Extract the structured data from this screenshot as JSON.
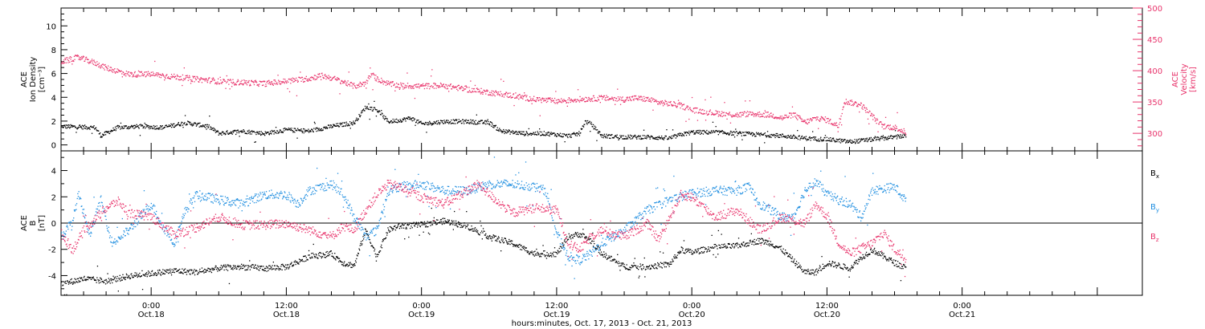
{
  "chart_data": {
    "type": "scatter",
    "x_axis": {
      "label": "hours:minutes, Oct. 17, 2013 - Oct. 21, 2013",
      "range_hours": [
        -8,
        88
      ],
      "ticks": [
        {
          "hours": 0,
          "time": "0:00",
          "date": "Oct.18"
        },
        {
          "hours": 12,
          "time": "12:00",
          "date": "Oct.18"
        },
        {
          "hours": 24,
          "time": "0:00",
          "date": "Oct.19"
        },
        {
          "hours": 36,
          "time": "12:00",
          "date": "Oct.19"
        },
        {
          "hours": 48,
          "time": "0:00",
          "date": "Oct.20"
        },
        {
          "hours": 60,
          "time": "12:00",
          "date": "Oct.20"
        },
        {
          "hours": 72,
          "time": "0:00",
          "date": "Oct.21"
        }
      ]
    },
    "top_panel": {
      "left_axis": {
        "label_lines": [
          "ACE",
          "Ion Density",
          "[cm⁻³]"
        ],
        "range": [
          -0.5,
          11.5
        ],
        "ticks": [
          0,
          2,
          4,
          6,
          8,
          10
        ],
        "color": "#000000"
      },
      "right_axis": {
        "label_lines": [
          "ACE",
          "Velocity",
          "[km/s]"
        ],
        "range": [
          272,
          500
        ],
        "ticks": [
          300,
          350,
          400,
          450,
          500
        ],
        "color": "#e8336b"
      },
      "series": [
        {
          "key": "density",
          "axis": "left",
          "color": "#000000",
          "points": [
            [
              -8,
              1.6
            ],
            [
              -5,
              1.5
            ],
            [
              -4.5,
              0.8
            ],
            [
              -3,
              1.5
            ],
            [
              -1,
              1.6
            ],
            [
              1,
              1.5
            ],
            [
              3,
              1.9
            ],
            [
              5,
              1.6
            ],
            [
              6,
              1.0
            ],
            [
              8,
              1.2
            ],
            [
              10,
              1.0
            ],
            [
              12,
              1.3
            ],
            [
              14,
              1.2
            ],
            [
              16,
              1.6
            ],
            [
              18,
              1.9
            ],
            [
              19,
              3.2
            ],
            [
              20,
              3.0
            ],
            [
              21,
              2.0
            ],
            [
              22,
              2.1
            ],
            [
              23,
              2.3
            ],
            [
              24,
              1.8
            ],
            [
              26,
              2.0
            ],
            [
              28,
              2.0
            ],
            [
              30,
              1.9
            ],
            [
              31,
              1.2
            ],
            [
              33,
              1.0
            ],
            [
              35,
              1.0
            ],
            [
              37,
              0.8
            ],
            [
              38,
              1.0
            ],
            [
              38.5,
              2.0
            ],
            [
              39,
              1.8
            ],
            [
              40,
              0.8
            ],
            [
              42,
              0.7
            ],
            [
              44,
              0.7
            ],
            [
              46,
              0.6
            ],
            [
              47,
              0.9
            ],
            [
              48,
              1.1
            ],
            [
              50,
              1.1
            ],
            [
              52,
              1.0
            ],
            [
              54,
              0.9
            ],
            [
              56,
              0.8
            ],
            [
              58,
              0.6
            ],
            [
              60,
              0.5
            ],
            [
              62,
              0.3
            ],
            [
              64,
              0.5
            ],
            [
              66,
              0.7
            ],
            [
              67,
              0.8
            ]
          ]
        },
        {
          "key": "velocity",
          "axis": "right",
          "color": "#e8336b",
          "points": [
            [
              -8,
              415
            ],
            [
              -6.5,
              422
            ],
            [
              -5,
              413
            ],
            [
              -4,
              405
            ],
            [
              -2,
              395
            ],
            [
              0,
              395
            ],
            [
              2,
              391
            ],
            [
              4,
              387
            ],
            [
              5.5,
              385
            ],
            [
              6,
              383
            ],
            [
              8,
              382
            ],
            [
              10,
              380
            ],
            [
              12,
              384
            ],
            [
              14,
              388
            ],
            [
              15,
              393
            ],
            [
              16,
              389
            ],
            [
              17,
              383
            ],
            [
              18,
              376
            ],
            [
              19,
              381
            ],
            [
              19.5,
              395
            ],
            [
              20,
              388
            ],
            [
              21,
              380
            ],
            [
              22,
              377
            ],
            [
              24,
              376
            ],
            [
              26,
              377
            ],
            [
              28,
              371
            ],
            [
              30,
              366
            ],
            [
              32,
              361
            ],
            [
              34,
              355
            ],
            [
              36,
              352
            ],
            [
              38,
              355
            ],
            [
              40,
              357
            ],
            [
              42,
              355
            ],
            [
              43,
              357
            ],
            [
              44,
              355
            ],
            [
              45,
              350
            ],
            [
              46,
              348
            ],
            [
              47,
              345
            ],
            [
              48,
              338
            ],
            [
              50,
              333
            ],
            [
              52,
              330
            ],
            [
              53,
              332
            ],
            [
              55,
              330
            ],
            [
              56,
              325
            ],
            [
              57,
              331
            ],
            [
              58,
              318
            ],
            [
              59,
              325
            ],
            [
              60,
              322
            ],
            [
              61,
              312
            ],
            [
              61.5,
              352
            ],
            [
              62,
              350
            ],
            [
              63,
              346
            ],
            [
              64,
              328
            ],
            [
              64.5,
              318
            ],
            [
              65,
              312
            ],
            [
              66,
              310
            ],
            [
              67,
              302
            ]
          ]
        }
      ]
    },
    "bottom_panel": {
      "left_axis": {
        "label_lines": [
          "ACE",
          "B",
          "[nT]"
        ],
        "range": [
          -5.5,
          5.5
        ],
        "ticks": [
          -4,
          -2,
          0,
          2,
          4
        ],
        "zero_line": true
      },
      "legend": [
        {
          "label": "Bx",
          "color": "#000000"
        },
        {
          "label": "By",
          "color": "#1f8ee0"
        },
        {
          "label": "Bz",
          "color": "#e8336b"
        }
      ],
      "series": [
        {
          "key": "Bx",
          "color": "#000000",
          "points": [
            [
              -8,
              -4.6
            ],
            [
              -6,
              -4.2
            ],
            [
              -4,
              -4.4
            ],
            [
              -2,
              -4.0
            ],
            [
              0,
              -3.8
            ],
            [
              2,
              -3.6
            ],
            [
              4,
              -3.7
            ],
            [
              6,
              -3.4
            ],
            [
              8,
              -3.3
            ],
            [
              10,
              -3.4
            ],
            [
              12,
              -3.3
            ],
            [
              14,
              -2.5
            ],
            [
              16,
              -2.3
            ],
            [
              17,
              -3.0
            ],
            [
              18,
              -3.2
            ],
            [
              19,
              -0.5
            ],
            [
              20,
              -2.5
            ],
            [
              21,
              -0.5
            ],
            [
              22,
              -0.2
            ],
            [
              24,
              -0.1
            ],
            [
              26,
              0.2
            ],
            [
              28,
              -0.2
            ],
            [
              30,
              -1.0
            ],
            [
              32,
              -1.5
            ],
            [
              34,
              -2.3
            ],
            [
              36,
              -2.3
            ],
            [
              37,
              -1.0
            ],
            [
              38,
              -0.8
            ],
            [
              39,
              -1.3
            ],
            [
              40,
              -2.3
            ],
            [
              42,
              -3.3
            ],
            [
              44,
              -3.3
            ],
            [
              46,
              -3.1
            ],
            [
              47,
              -2.0
            ],
            [
              48,
              -2.2
            ],
            [
              50,
              -1.8
            ],
            [
              52,
              -1.7
            ],
            [
              53,
              -1.5
            ],
            [
              54,
              -1.3
            ],
            [
              55,
              -1.5
            ],
            [
              56,
              -2.0
            ],
            [
              58,
              -3.7
            ],
            [
              59,
              -3.7
            ],
            [
              60,
              -3.0
            ],
            [
              62,
              -3.4
            ],
            [
              63,
              -2.6
            ],
            [
              64,
              -2.0
            ],
            [
              66,
              -3.0
            ],
            [
              67,
              -3.4
            ]
          ]
        },
        {
          "key": "By",
          "color": "#1f8ee0",
          "points": [
            [
              -8,
              -1.0
            ],
            [
              -7,
              0.2
            ],
            [
              -6.5,
              2.2
            ],
            [
              -5.5,
              -0.8
            ],
            [
              -4.5,
              1.8
            ],
            [
              -3.5,
              -1.5
            ],
            [
              -2,
              -0.5
            ],
            [
              0,
              1.5
            ],
            [
              1,
              -0.2
            ],
            [
              2,
              -1.5
            ],
            [
              3,
              1.0
            ],
            [
              4,
              2.2
            ],
            [
              6,
              1.8
            ],
            [
              8,
              1.5
            ],
            [
              10,
              2.2
            ],
            [
              12,
              2.2
            ],
            [
              13,
              1.5
            ],
            [
              14,
              2.5
            ],
            [
              16,
              3.0
            ],
            [
              17,
              2.2
            ],
            [
              18,
              0.5
            ],
            [
              19,
              -1.0
            ],
            [
              20,
              -0.5
            ],
            [
              21,
              2.5
            ],
            [
              22,
              2.8
            ],
            [
              24,
              3.0
            ],
            [
              26,
              2.5
            ],
            [
              28,
              2.5
            ],
            [
              30,
              3.0
            ],
            [
              32,
              3.0
            ],
            [
              34,
              2.8
            ],
            [
              35,
              2.5
            ],
            [
              36,
              -0.8
            ],
            [
              37,
              -2.5
            ],
            [
              38,
              -2.8
            ],
            [
              39,
              -2.3
            ],
            [
              40,
              -1.5
            ],
            [
              42,
              -0.5
            ],
            [
              44,
              1.0
            ],
            [
              46,
              1.8
            ],
            [
              48,
              2.3
            ],
            [
              50,
              2.5
            ],
            [
              52,
              2.5
            ],
            [
              53,
              2.8
            ],
            [
              54,
              1.5
            ],
            [
              56,
              0.5
            ],
            [
              57,
              0.5
            ],
            [
              58,
              2.5
            ],
            [
              59,
              3.2
            ],
            [
              60,
              2.2
            ],
            [
              61,
              1.8
            ],
            [
              62,
              1.5
            ],
            [
              63,
              0.5
            ],
            [
              64,
              2.5
            ],
            [
              66,
              2.8
            ],
            [
              67,
              1.7
            ]
          ]
        },
        {
          "key": "Bz",
          "color": "#e8336b",
          "points": [
            [
              -8,
              -0.8
            ],
            [
              -7,
              -2.0
            ],
            [
              -6,
              -0.5
            ],
            [
              -4,
              1.2
            ],
            [
              -3,
              1.7
            ],
            [
              -2,
              0.8
            ],
            [
              0,
              0.5
            ],
            [
              2,
              -0.8
            ],
            [
              4,
              -0.3
            ],
            [
              6,
              0.5
            ],
            [
              8,
              -0.1
            ],
            [
              10,
              -0.1
            ],
            [
              12,
              0.0
            ],
            [
              14,
              -0.5
            ],
            [
              16,
              -1.0
            ],
            [
              17,
              -0.2
            ],
            [
              18,
              -0.5
            ],
            [
              19,
              1.0
            ],
            [
              20,
              2.2
            ],
            [
              21,
              3.0
            ],
            [
              22,
              2.8
            ],
            [
              24,
              2.0
            ],
            [
              26,
              1.5
            ],
            [
              28,
              2.5
            ],
            [
              29,
              3.0
            ],
            [
              30,
              2.2
            ],
            [
              32,
              0.8
            ],
            [
              34,
              1.2
            ],
            [
              36,
              1.0
            ],
            [
              37,
              -1.5
            ],
            [
              38,
              -2.0
            ],
            [
              39,
              -1.0
            ],
            [
              40,
              -0.5
            ],
            [
              42,
              -1.0
            ],
            [
              44,
              0.0
            ],
            [
              45,
              -1.2
            ],
            [
              46,
              0.5
            ],
            [
              47,
              2.2
            ],
            [
              48,
              2.0
            ],
            [
              50,
              0.5
            ],
            [
              52,
              1.0
            ],
            [
              54,
              -0.5
            ],
            [
              56,
              0.5
            ],
            [
              58,
              0.0
            ],
            [
              59,
              1.5
            ],
            [
              60,
              0.5
            ],
            [
              61,
              -1.5
            ],
            [
              62,
              -2.3
            ],
            [
              64,
              -1.5
            ],
            [
              65,
              -0.7
            ],
            [
              66,
              -2.0
            ],
            [
              67,
              -2.7
            ]
          ]
        }
      ]
    }
  }
}
